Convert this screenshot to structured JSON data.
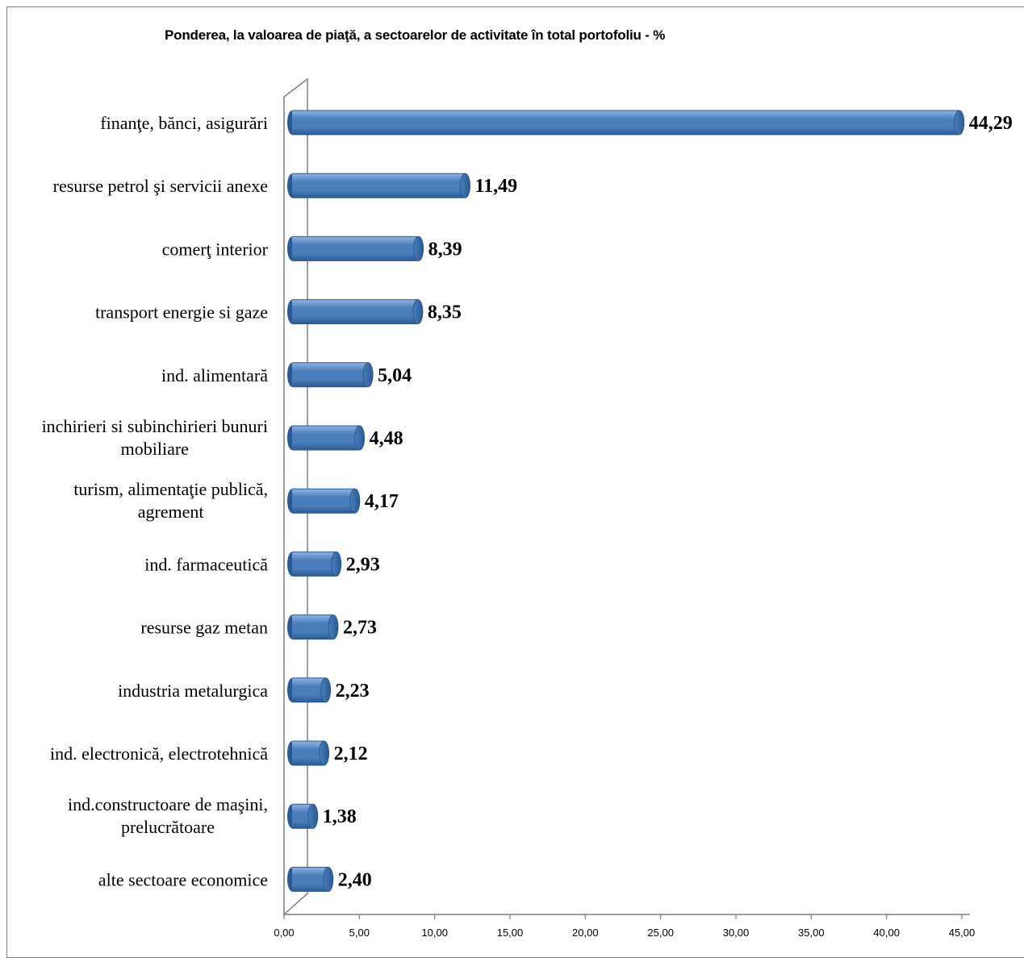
{
  "chart_data": {
    "type": "bar",
    "orientation": "horizontal",
    "title": "Ponderea, la valoarea de piaţă, a sectoarelor de activitate în total portofoliu - %",
    "categories": [
      [
        "finanţe, bănci, asigurări"
      ],
      [
        "resurse petrol şi servicii anexe"
      ],
      [
        "comerţ interior"
      ],
      [
        "transport energie si gaze"
      ],
      [
        "ind. alimentară"
      ],
      [
        "inchirieri si subinchirieri bunuri",
        "mobiliare"
      ],
      [
        "turism, alimentaţie publică,",
        "agrement"
      ],
      [
        "ind. farmaceutică"
      ],
      [
        "resurse gaz metan"
      ],
      [
        "industria metalurgica"
      ],
      [
        "ind. electronică, electrotehnică"
      ],
      [
        "ind.constructoare de maşini,",
        "prelucrătoare"
      ],
      [
        "alte sectoare economice"
      ]
    ],
    "values": [
      44.29,
      11.49,
      8.39,
      8.35,
      5.04,
      4.48,
      4.17,
      2.93,
      2.73,
      2.23,
      2.12,
      1.38,
      2.4
    ],
    "data_labels": [
      "44,29",
      "11,49",
      "8,39",
      "8,35",
      "5,04",
      "4,48",
      "4,17",
      "2,93",
      "2,73",
      "2,23",
      "2,12",
      "1,38",
      "2,40"
    ],
    "xlim": [
      0,
      45
    ],
    "xticks": [
      "0,00",
      "5,00",
      "10,00",
      "15,00",
      "20,00",
      "25,00",
      "30,00",
      "35,00",
      "40,00",
      "45,00"
    ],
    "xlabel": "",
    "ylabel": "",
    "grid": false,
    "legend": "none",
    "bar_color": "#4a7ebb",
    "bar_highlight": "#8fb4e3",
    "bar_shadow": "#2b5a92"
  }
}
